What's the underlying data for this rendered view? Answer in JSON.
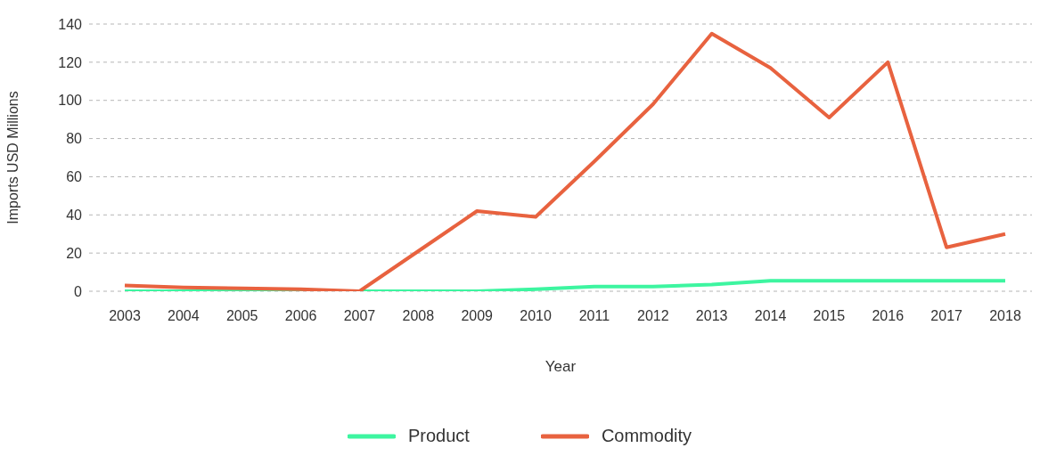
{
  "chart_data": {
    "type": "line",
    "xlabel": "Year",
    "ylabel": "Imports USD Millions",
    "categories": [
      "2003",
      "2004",
      "2005",
      "2006",
      "2007",
      "2008",
      "2009",
      "2010",
      "2011",
      "2012",
      "2013",
      "2014",
      "2015",
      "2016",
      "2017",
      "2018"
    ],
    "series": [
      {
        "name": "Product",
        "color": "#3df5a0",
        "values": [
          0,
          0,
          0,
          0,
          0,
          0,
          0,
          1,
          2.5,
          2.5,
          3.5,
          5.5,
          5.5,
          5.5,
          5.5,
          5.5
        ]
      },
      {
        "name": "Commodity",
        "color": "#e8623f",
        "values": [
          3,
          2,
          1.5,
          1,
          0,
          21,
          42,
          39,
          68,
          98,
          135,
          117,
          91,
          120,
          23,
          30
        ]
      }
    ],
    "ylim": [
      0,
      140
    ],
    "yticks": [
      0,
      20,
      40,
      60,
      80,
      100,
      120,
      140
    ],
    "grid": "y",
    "legend": "bottom",
    "marker": "none",
    "line_style": "solid"
  }
}
